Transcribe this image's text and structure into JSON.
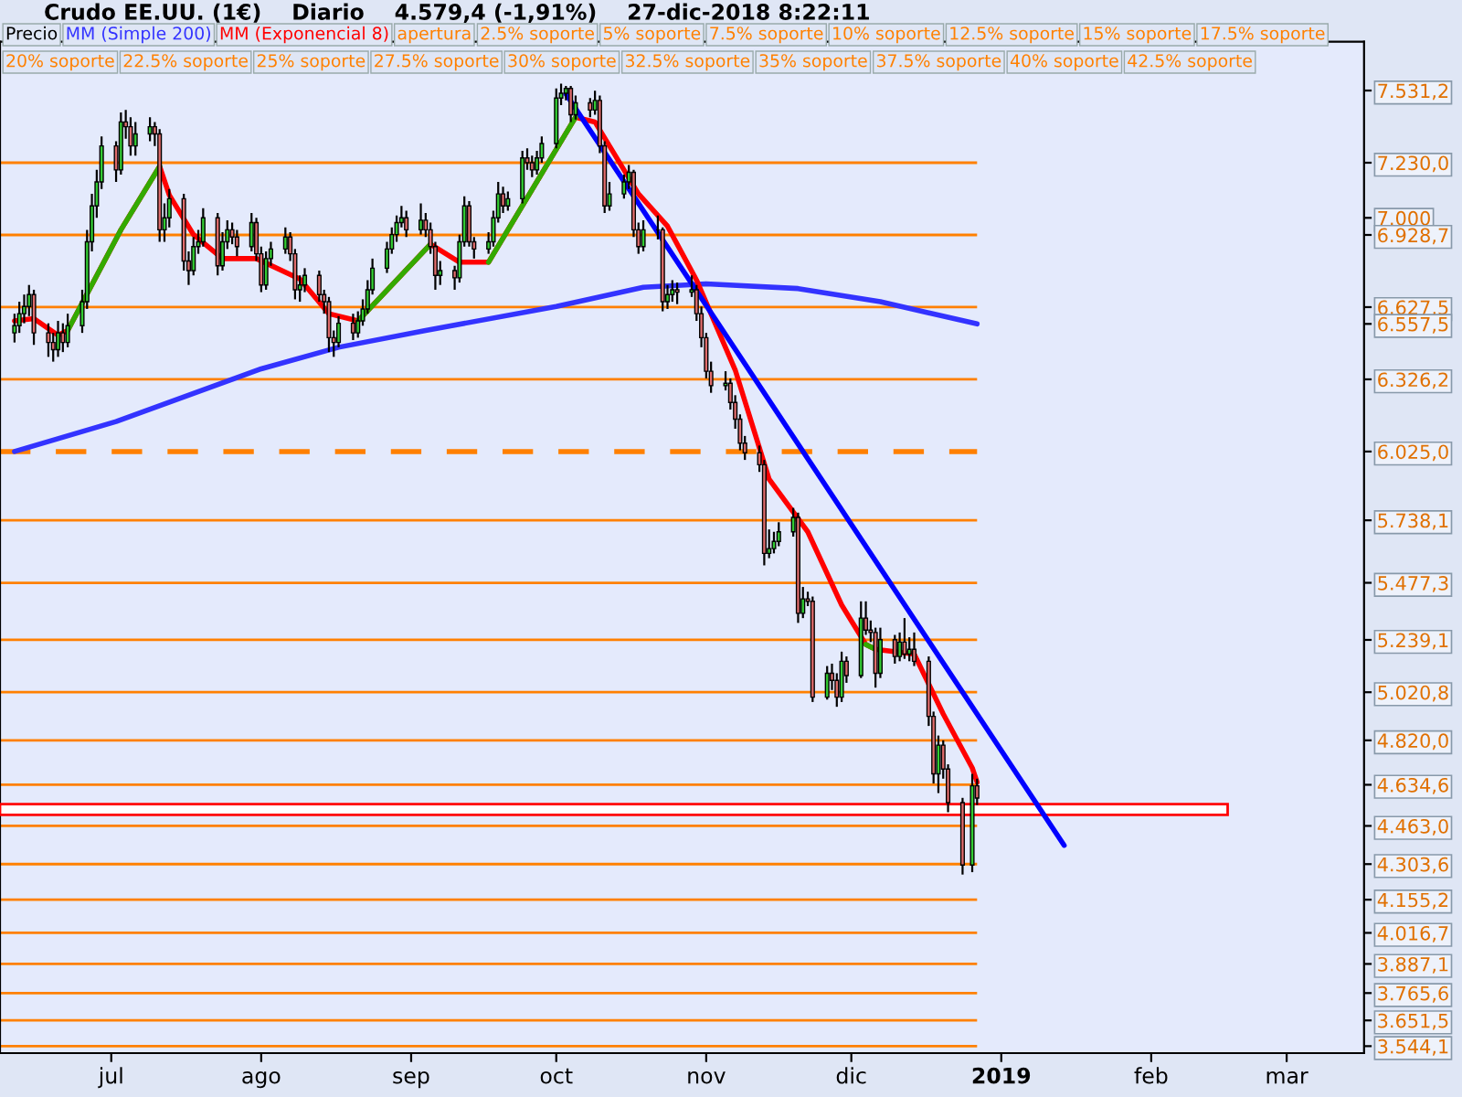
{
  "chart_data": {
    "type": "candlestick",
    "title": "Crudo EE.UU. (1€)    Diario    4.579,4 (-1,91%)    27-dic-2018 8:22:11",
    "series": [
      {
        "name": "Precio",
        "x": [
          "2018-06-11",
          "2018-06-12",
          "2018-06-13",
          "2018-06-14",
          "2018-06-15",
          "2018-06-18",
          "2018-06-19",
          "2018-06-20",
          "2018-06-21",
          "2018-06-22",
          "2018-06-25",
          "2018-06-26",
          "2018-06-27",
          "2018-06-28",
          "2018-06-29",
          "2018-07-02",
          "2018-07-03",
          "2018-07-04",
          "2018-07-05",
          "2018-07-06",
          "2018-07-09",
          "2018-07-10",
          "2018-07-11",
          "2018-07-12",
          "2018-07-13",
          "2018-07-16",
          "2018-07-17",
          "2018-07-18",
          "2018-07-19",
          "2018-07-20",
          "2018-07-23",
          "2018-07-24",
          "2018-07-25",
          "2018-07-26",
          "2018-07-27",
          "2018-07-30",
          "2018-07-31",
          "2018-08-01",
          "2018-08-02",
          "2018-08-03",
          "2018-08-06",
          "2018-08-07",
          "2018-08-08",
          "2018-08-09",
          "2018-08-10",
          "2018-08-13",
          "2018-08-14",
          "2018-08-15",
          "2018-08-16",
          "2018-08-17",
          "2018-08-20",
          "2018-08-21",
          "2018-08-22",
          "2018-08-23",
          "2018-08-24",
          "2018-08-27",
          "2018-08-28",
          "2018-08-29",
          "2018-08-30",
          "2018-08-31",
          "2018-09-03",
          "2018-09-04",
          "2018-09-05",
          "2018-09-06",
          "2018-09-07",
          "2018-09-10",
          "2018-09-11",
          "2018-09-12",
          "2018-09-13",
          "2018-09-14",
          "2018-09-17",
          "2018-09-18",
          "2018-09-19",
          "2018-09-20",
          "2018-09-21",
          "2018-09-24",
          "2018-09-25",
          "2018-09-26",
          "2018-09-27",
          "2018-09-28",
          "2018-10-01",
          "2018-10-02",
          "2018-10-03",
          "2018-10-04",
          "2018-10-05",
          "2018-10-08",
          "2018-10-09",
          "2018-10-10",
          "2018-10-11",
          "2018-10-12",
          "2018-10-15",
          "2018-10-16",
          "2018-10-17",
          "2018-10-18",
          "2018-10-19",
          "2018-10-22",
          "2018-10-23",
          "2018-10-24",
          "2018-10-25",
          "2018-10-26",
          "2018-10-29",
          "2018-10-30",
          "2018-10-31",
          "2018-11-01",
          "2018-11-02",
          "2018-11-05",
          "2018-11-06",
          "2018-11-07",
          "2018-11-08",
          "2018-11-09",
          "2018-11-12",
          "2018-11-13",
          "2018-11-14",
          "2018-11-15",
          "2018-11-16",
          "2018-11-19",
          "2018-11-20",
          "2018-11-21",
          "2018-11-22",
          "2018-11-23",
          "2018-11-26",
          "2018-11-27",
          "2018-11-28",
          "2018-11-29",
          "2018-11-30",
          "2018-12-03",
          "2018-12-04",
          "2018-12-05",
          "2018-12-06",
          "2018-12-07",
          "2018-12-10",
          "2018-12-11",
          "2018-12-12",
          "2018-12-13",
          "2018-12-14",
          "2018-12-17",
          "2018-12-18",
          "2018-12-19",
          "2018-12-20",
          "2018-12-21",
          "2018-12-24",
          "2018-12-26",
          "2018-12-27"
        ],
        "ohlc": [
          [
            6520,
            6600,
            6480,
            6550
          ],
          [
            6550,
            6650,
            6520,
            6600
          ],
          [
            6600,
            6680,
            6560,
            6630
          ],
          [
            6630,
            6720,
            6590,
            6680
          ],
          [
            6680,
            6700,
            6470,
            6520
          ],
          [
            6520,
            6560,
            6420,
            6480
          ],
          [
            6480,
            6520,
            6400,
            6450
          ],
          [
            6450,
            6570,
            6420,
            6520
          ],
          [
            6520,
            6560,
            6440,
            6480
          ],
          [
            6480,
            6600,
            6460,
            6550
          ],
          [
            6550,
            6700,
            6520,
            6650
          ],
          [
            6650,
            6950,
            6620,
            6900
          ],
          [
            6900,
            7100,
            6860,
            7050
          ],
          [
            7050,
            7200,
            7000,
            7150
          ],
          [
            7150,
            7340,
            7120,
            7300
          ],
          [
            7300,
            7320,
            7150,
            7200
          ],
          [
            7200,
            7440,
            7180,
            7400
          ],
          [
            7400,
            7450,
            7330,
            7380
          ],
          [
            7380,
            7420,
            7260,
            7300
          ],
          [
            7300,
            7400,
            7260,
            7350
          ],
          [
            7350,
            7420,
            7320,
            7380
          ],
          [
            7380,
            7400,
            7300,
            7350
          ],
          [
            7350,
            7370,
            6900,
            6950
          ],
          [
            6950,
            7060,
            6900,
            7000
          ],
          [
            7000,
            7120,
            6960,
            7080
          ],
          [
            7080,
            7100,
            6780,
            6820
          ],
          [
            6820,
            6860,
            6720,
            6780
          ],
          [
            6780,
            6920,
            6760,
            6880
          ],
          [
            6880,
            6950,
            6850,
            6900
          ],
          [
            6900,
            7040,
            6880,
            7000
          ],
          [
            7000,
            7020,
            6760,
            6800
          ],
          [
            6800,
            6940,
            6780,
            6900
          ],
          [
            6900,
            6990,
            6870,
            6950
          ],
          [
            6950,
            6980,
            6890,
            6920
          ],
          [
            6920,
            6950,
            6840,
            6880
          ],
          [
            6880,
            7020,
            6860,
            6980
          ],
          [
            6980,
            7000,
            6820,
            6850
          ],
          [
            6850,
            6880,
            6690,
            6720
          ],
          [
            6720,
            6860,
            6700,
            6830
          ],
          [
            6830,
            6900,
            6800,
            6870
          ],
          [
            6870,
            6960,
            6850,
            6920
          ],
          [
            6920,
            6940,
            6820,
            6850
          ],
          [
            6850,
            6870,
            6660,
            6700
          ],
          [
            6700,
            6760,
            6650,
            6720
          ],
          [
            6720,
            6790,
            6690,
            6760
          ],
          [
            6760,
            6780,
            6650,
            6680
          ],
          [
            6680,
            6700,
            6600,
            6650
          ],
          [
            6650,
            6670,
            6440,
            6500
          ],
          [
            6500,
            6530,
            6420,
            6480
          ],
          [
            6480,
            6590,
            6460,
            6560
          ],
          [
            6560,
            6600,
            6490,
            6520
          ],
          [
            6520,
            6610,
            6500,
            6570
          ],
          [
            6570,
            6660,
            6550,
            6620
          ],
          [
            6620,
            6740,
            6600,
            6700
          ],
          [
            6700,
            6830,
            6680,
            6790
          ],
          [
            6790,
            6900,
            6770,
            6870
          ],
          [
            6870,
            6960,
            6850,
            6930
          ],
          [
            6930,
            7010,
            6900,
            6980
          ],
          [
            6980,
            7050,
            6960,
            7000
          ],
          [
            7000,
            7030,
            6920,
            6950
          ],
          [
            6950,
            7060,
            6930,
            6990
          ],
          [
            6990,
            7020,
            6920,
            6950
          ],
          [
            6950,
            6980,
            6850,
            6880
          ],
          [
            6880,
            6900,
            6700,
            6760
          ],
          [
            6760,
            6820,
            6720,
            6780
          ],
          [
            6780,
            6800,
            6700,
            6750
          ],
          [
            6750,
            6930,
            6730,
            6900
          ],
          [
            6900,
            7090,
            6880,
            7050
          ],
          [
            7050,
            7070,
            6880,
            6900
          ],
          [
            6900,
            6920,
            6830,
            6870
          ],
          [
            6870,
            6940,
            6850,
            6900
          ],
          [
            6900,
            7030,
            6880,
            7000
          ],
          [
            7000,
            7150,
            6980,
            7100
          ],
          [
            7100,
            7130,
            7020,
            7050
          ],
          [
            7050,
            7110,
            7030,
            7080
          ],
          [
            7080,
            7280,
            7060,
            7250
          ],
          [
            7250,
            7290,
            7200,
            7230
          ],
          [
            7230,
            7260,
            7170,
            7200
          ],
          [
            7200,
            7280,
            7180,
            7250
          ],
          [
            7250,
            7340,
            7230,
            7310
          ],
          [
            7310,
            7540,
            7290,
            7500
          ],
          [
            7500,
            7560,
            7470,
            7520
          ],
          [
            7520,
            7550,
            7490,
            7540
          ],
          [
            7540,
            7550,
            7400,
            7430
          ],
          [
            7430,
            7510,
            7410,
            7480
          ],
          [
            7480,
            7500,
            7420,
            7450
          ],
          [
            7450,
            7530,
            7430,
            7490
          ],
          [
            7490,
            7510,
            7270,
            7300
          ],
          [
            7300,
            7320,
            7020,
            7050
          ],
          [
            7050,
            7150,
            7030,
            7100
          ],
          [
            7100,
            7180,
            7080,
            7150
          ],
          [
            7150,
            7220,
            7120,
            7190
          ],
          [
            7190,
            7200,
            6920,
            6950
          ],
          [
            6950,
            6980,
            6850,
            6880
          ],
          [
            6880,
            6990,
            6860,
            6950
          ],
          [
            6950,
            7010,
            6910,
            6950
          ],
          [
            6950,
            6960,
            6610,
            6650
          ],
          [
            6650,
            6720,
            6620,
            6680
          ],
          [
            6680,
            6740,
            6650,
            6700
          ],
          [
            6700,
            6730,
            6640,
            6690
          ],
          [
            6690,
            6760,
            6670,
            6700
          ],
          [
            6700,
            6720,
            6570,
            6600
          ],
          [
            6600,
            6630,
            6460,
            6500
          ],
          [
            6500,
            6520,
            6330,
            6360
          ],
          [
            6360,
            6400,
            6270,
            6300
          ],
          [
            6300,
            6360,
            6280,
            6310
          ],
          [
            6310,
            6330,
            6200,
            6230
          ],
          [
            6230,
            6260,
            6120,
            6160
          ],
          [
            6160,
            6180,
            6030,
            6060
          ],
          [
            6060,
            6090,
            5990,
            6020
          ],
          [
            6020,
            6050,
            5940,
            5970
          ],
          [
            5970,
            5990,
            5550,
            5600
          ],
          [
            5600,
            5700,
            5580,
            5620
          ],
          [
            5620,
            5690,
            5600,
            5650
          ],
          [
            5650,
            5730,
            5630,
            5690
          ],
          [
            5690,
            5790,
            5670,
            5750
          ],
          [
            5750,
            5770,
            5310,
            5350
          ],
          [
            5350,
            5460,
            5330,
            5410
          ],
          [
            5410,
            5440,
            5380,
            5400
          ],
          [
            5400,
            5420,
            4980,
            5000
          ],
          [
            5000,
            5130,
            4990,
            5100
          ],
          [
            5100,
            5140,
            5030,
            5070
          ],
          [
            5070,
            5100,
            4960,
            5000
          ],
          [
            5000,
            5190,
            4980,
            5150
          ],
          [
            5150,
            5170,
            5060,
            5090
          ],
          [
            5090,
            5400,
            5080,
            5330
          ],
          [
            5330,
            5400,
            5260,
            5280
          ],
          [
            5280,
            5320,
            5230,
            5270
          ],
          [
            5270,
            5290,
            5040,
            5100
          ],
          [
            5100,
            5290,
            5080,
            5240
          ],
          [
            5240,
            5260,
            5140,
            5170
          ],
          [
            5170,
            5270,
            5150,
            5230
          ],
          [
            5230,
            5330,
            5160,
            5180
          ],
          [
            5180,
            5250,
            5150,
            5200
          ],
          [
            5200,
            5270,
            5130,
            5150
          ],
          [
            5150,
            5170,
            4880,
            4920
          ],
          [
            4920,
            4940,
            4640,
            4680
          ],
          [
            4680,
            4840,
            4600,
            4800
          ],
          [
            4800,
            4820,
            4660,
            4700
          ],
          [
            4700,
            4720,
            4520,
            4560
          ],
          [
            4560,
            4580,
            4260,
            4300
          ],
          [
            4300,
            4680,
            4270,
            4630
          ],
          [
            4630,
            4660,
            4550,
            4579.4
          ]
        ]
      },
      {
        "name": "MM (Simple 200)",
        "type": "line",
        "color": "#3333ff",
        "x": [
          "2018-06-11",
          "2018-07-02",
          "2018-08-01",
          "2018-08-17",
          "2018-09-04",
          "2018-10-01",
          "2018-10-19",
          "2018-11-01",
          "2018-11-20",
          "2018-12-07",
          "2018-12-27"
        ],
        "values": [
          6025,
          6150,
          6370,
          6460,
          6530,
          6630,
          6710,
          6725,
          6705,
          6650,
          6557.5
        ]
      },
      {
        "name": "MM (Exponencial 8)",
        "type": "line",
        "color": "#ff0000",
        "x": [
          "2018-06-11",
          "2018-06-15",
          "2018-06-20",
          "2018-06-22",
          "2018-07-03",
          "2018-07-11",
          "2018-07-13",
          "2018-07-18",
          "2018-07-24",
          "2018-07-31",
          "2018-08-09",
          "2018-08-15",
          "2018-08-21",
          "2018-09-05",
          "2018-09-11",
          "2018-09-17",
          "2018-10-05",
          "2018-10-09",
          "2018-10-18",
          "2018-10-24",
          "2018-10-30",
          "2018-11-07",
          "2018-11-14",
          "2018-11-22",
          "2018-11-29",
          "2018-12-04",
          "2018-12-06",
          "2018-12-14",
          "2018-12-20",
          "2018-12-26",
          "2018-12-27"
        ],
        "values": [
          6570,
          6580,
          6510,
          6530,
          6950,
          7215,
          7095,
          6930,
          6830,
          6830,
          6745,
          6600,
          6570,
          6890,
          6815,
          6815,
          7420,
          7400,
          7100,
          6965,
          6740,
          6365,
          5910,
          5690,
          5385,
          5220,
          5200,
          5180,
          4930,
          4705,
          4645
        ]
      },
      {
        "type": "line",
        "color": "#33aa00",
        "x": [
          "2018-06-22",
          "2018-07-03",
          "2018-07-11",
          "2018-07-13",
          "2018-08-21",
          "2018-09-05",
          "2018-09-11",
          "2018-09-17",
          "2018-10-05",
          "2018-10-09",
          "2018-12-04",
          "2018-12-06"
        ],
        "values": [
          6530,
          6950,
          7215,
          null,
          6570,
          6890,
          null,
          6815,
          7420,
          null,
          5220,
          5200
        ]
      },
      {
        "type": "line",
        "color": "#0000ff",
        "x": [
          "2018-10-03",
          "2019-01-14"
        ],
        "values": [
          7517,
          4382
        ]
      }
    ],
    "ref_lines": [
      {
        "axis": "y",
        "value": 7230,
        "color": "#ff8000"
      },
      {
        "axis": "y",
        "value": 6928.7,
        "color": "#ff8000"
      },
      {
        "axis": "y",
        "value": 6627.5,
        "color": "#ff8000"
      },
      {
        "axis": "y",
        "value": 6326.2,
        "color": "#ff8000"
      },
      {
        "axis": "y",
        "value": 6025,
        "label": "apertura",
        "color": "#ff8000",
        "line_style": "dashed"
      },
      {
        "axis": "y",
        "value": 5738.1,
        "label": "2.5% soporte",
        "color": "#ff8000"
      },
      {
        "axis": "y",
        "value": 5477.3,
        "label": "5% soporte",
        "color": "#ff8000"
      },
      {
        "axis": "y",
        "value": 5239.1,
        "label": "7.5% soporte",
        "color": "#ff8000"
      },
      {
        "axis": "y",
        "value": 5020.8,
        "label": "10% soporte",
        "color": "#ff8000"
      },
      {
        "axis": "y",
        "value": 4820,
        "label": "12.5% soporte",
        "color": "#ff8000"
      },
      {
        "axis": "y",
        "value": 4634.6,
        "label": "15% soporte",
        "color": "#ff8000"
      },
      {
        "axis": "y",
        "value": 4463,
        "label": "17.5% soporte",
        "color": "#ff8000"
      },
      {
        "axis": "y",
        "value": 4303.6,
        "label": "20% soporte",
        "color": "#ff8000"
      },
      {
        "axis": "y",
        "value": 4155.2,
        "label": "22.5% soporte",
        "color": "#ff8000"
      },
      {
        "axis": "y",
        "value": 4016.7,
        "label": "25% soporte",
        "color": "#ff8000"
      },
      {
        "axis": "y",
        "value": 3887.1,
        "label": "27.5% soporte",
        "color": "#ff8000"
      },
      {
        "axis": "y",
        "value": 3765.6,
        "label": "30% soporte",
        "color": "#ff8000"
      },
      {
        "axis": "y",
        "value": 3651.5,
        "label": "32.5% soporte",
        "color": "#ff8000"
      },
      {
        "axis": "y",
        "value": 3544.1,
        "label": "35% soporte",
        "color": "#ff8000"
      }
    ],
    "bands": [
      {
        "axis": "y",
        "from": 4509,
        "to": 4554,
        "color": "#ff0000"
      }
    ],
    "annotations": [
      "37.5% soporte",
      "40% soporte",
      "42.5% soporte"
    ],
    "xlim": [
      "2018-06-08",
      "2019-03-17"
    ],
    "xticks": [
      {
        "value": "2018-07-01",
        "label": "jul"
      },
      {
        "value": "2018-08-01",
        "label": "ago"
      },
      {
        "value": "2018-09-01",
        "label": "sep"
      },
      {
        "value": "2018-10-01",
        "label": "oct"
      },
      {
        "value": "2018-11-01",
        "label": "nov"
      },
      {
        "value": "2018-12-01",
        "label": "dic"
      },
      {
        "value": "2019-01-01",
        "label": "2019"
      },
      {
        "value": "2019-02-01",
        "label": "feb"
      },
      {
        "value": "2019-03-01",
        "label": "mar"
      }
    ],
    "ylim": [
      3515,
      7735
    ],
    "yticks": [
      {
        "value": 7531.2,
        "label": "7.531,2"
      },
      {
        "value": 7230,
        "label": "7.230,0"
      },
      {
        "value": 7000,
        "label": "7.000"
      },
      {
        "value": 6928.7,
        "label": "6.928,7"
      },
      {
        "value": 6627.5,
        "label": "6.627,5"
      },
      {
        "value": 6557.5,
        "label": "6.557,5"
      },
      {
        "value": 6326.2,
        "label": "6.326,2"
      },
      {
        "value": 6025,
        "label": "6.025,0"
      },
      {
        "value": 5738.1,
        "label": "5.738,1"
      },
      {
        "value": 5477.3,
        "label": "5.477,3"
      },
      {
        "value": 5239.1,
        "label": "5.239,1"
      },
      {
        "value": 5020.8,
        "label": "5.020,8"
      },
      {
        "value": 4820,
        "label": "4.820,0"
      },
      {
        "value": 4634.6,
        "label": "4.634,6"
      },
      {
        "value": 4463,
        "label": "4.463,0"
      },
      {
        "value": 4303.6,
        "label": "4.303,6"
      },
      {
        "value": 4155.2,
        "label": "4.155,2"
      },
      {
        "value": 4016.7,
        "label": "4.016,7"
      },
      {
        "value": 3887.1,
        "label": "3.887,1"
      },
      {
        "value": 3765.6,
        "label": "3.765,6"
      },
      {
        "value": 3651.5,
        "label": "3.651,5"
      },
      {
        "value": 3544.1,
        "label": "3.544,1"
      }
    ],
    "grid": false,
    "legend": "top"
  }
}
